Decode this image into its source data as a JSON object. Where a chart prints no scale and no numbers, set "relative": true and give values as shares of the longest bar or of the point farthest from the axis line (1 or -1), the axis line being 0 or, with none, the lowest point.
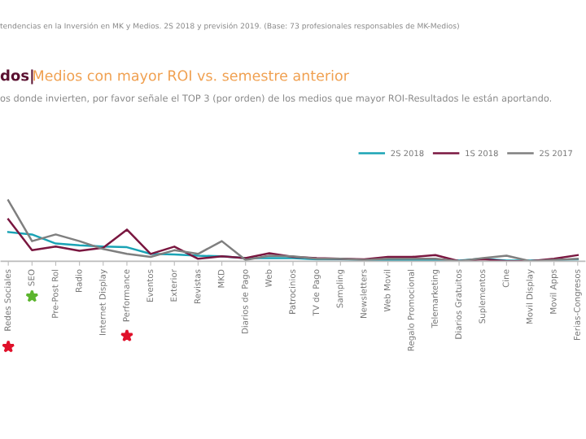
{
  "chart_data": {
    "type": "line",
    "relative": true,
    "title": "dos|",
    "subtitle": "Medios con mayor ROI vs. semestre anterior",
    "annotations": [
      "tendencias en la Inversión en MK y Medios. 2S 2018 y previsión 2019. (Base: 73 profesionales responsables de MK-Medios)",
      "os donde invierten, por favor señale el TOP 3 (por orden) de los medios que mayor ROI-Resultados le están aportando."
    ],
    "categories": [
      "Redes Sociales",
      "SEO",
      "Pre-Post Rol",
      "Radio",
      "Internet Display",
      "Performance",
      "Eventos",
      "Exterior",
      "Revistas",
      "MKD",
      "Diarios de Pago",
      "Web",
      "Patrocinios",
      "TV de Pago",
      "Sampling",
      "Newsletters",
      "Web Movil",
      "Regalo Promocional",
      "Telemarketing",
      "Diarios Gratuitos",
      "Suplementos",
      "Cine",
      "Movil Display",
      "Movil Apps",
      "Ferias-Congresos"
    ],
    "series": [
      {
        "name": "2S 2018",
        "color": "#1aa3b5",
        "values": [
          0.48,
          0.44,
          0.29,
          0.26,
          0.24,
          0.23,
          0.12,
          0.11,
          0.09,
          0.08,
          0.05,
          0.05,
          0.05,
          0.03,
          0.03,
          0.02,
          0.02,
          0.02,
          0.02,
          0.01,
          0.04,
          0.01,
          0.01,
          0.02,
          0.03
        ]
      },
      {
        "name": "1S 2018",
        "color": "#7a1740",
        "values": [
          0.69,
          0.18,
          0.24,
          0.17,
          0.22,
          0.52,
          0.12,
          0.24,
          0.04,
          0.08,
          0.05,
          0.13,
          0.07,
          0.05,
          0.04,
          0.03,
          0.07,
          0.07,
          0.1,
          0.0,
          0.03,
          0.0,
          0.0,
          0.04,
          0.1
        ]
      },
      {
        "name": "2S 2017",
        "color": "#7f7f7f",
        "values": [
          1.0,
          0.33,
          0.44,
          0.33,
          0.2,
          0.12,
          0.07,
          0.18,
          0.12,
          0.33,
          0.02,
          0.09,
          0.08,
          0.04,
          0.04,
          0.02,
          0.04,
          0.04,
          0.04,
          0.0,
          0.05,
          0.09,
          0.0,
          0.02,
          0.04
        ]
      }
    ],
    "legend": "top right",
    "grid": false
  }
}
